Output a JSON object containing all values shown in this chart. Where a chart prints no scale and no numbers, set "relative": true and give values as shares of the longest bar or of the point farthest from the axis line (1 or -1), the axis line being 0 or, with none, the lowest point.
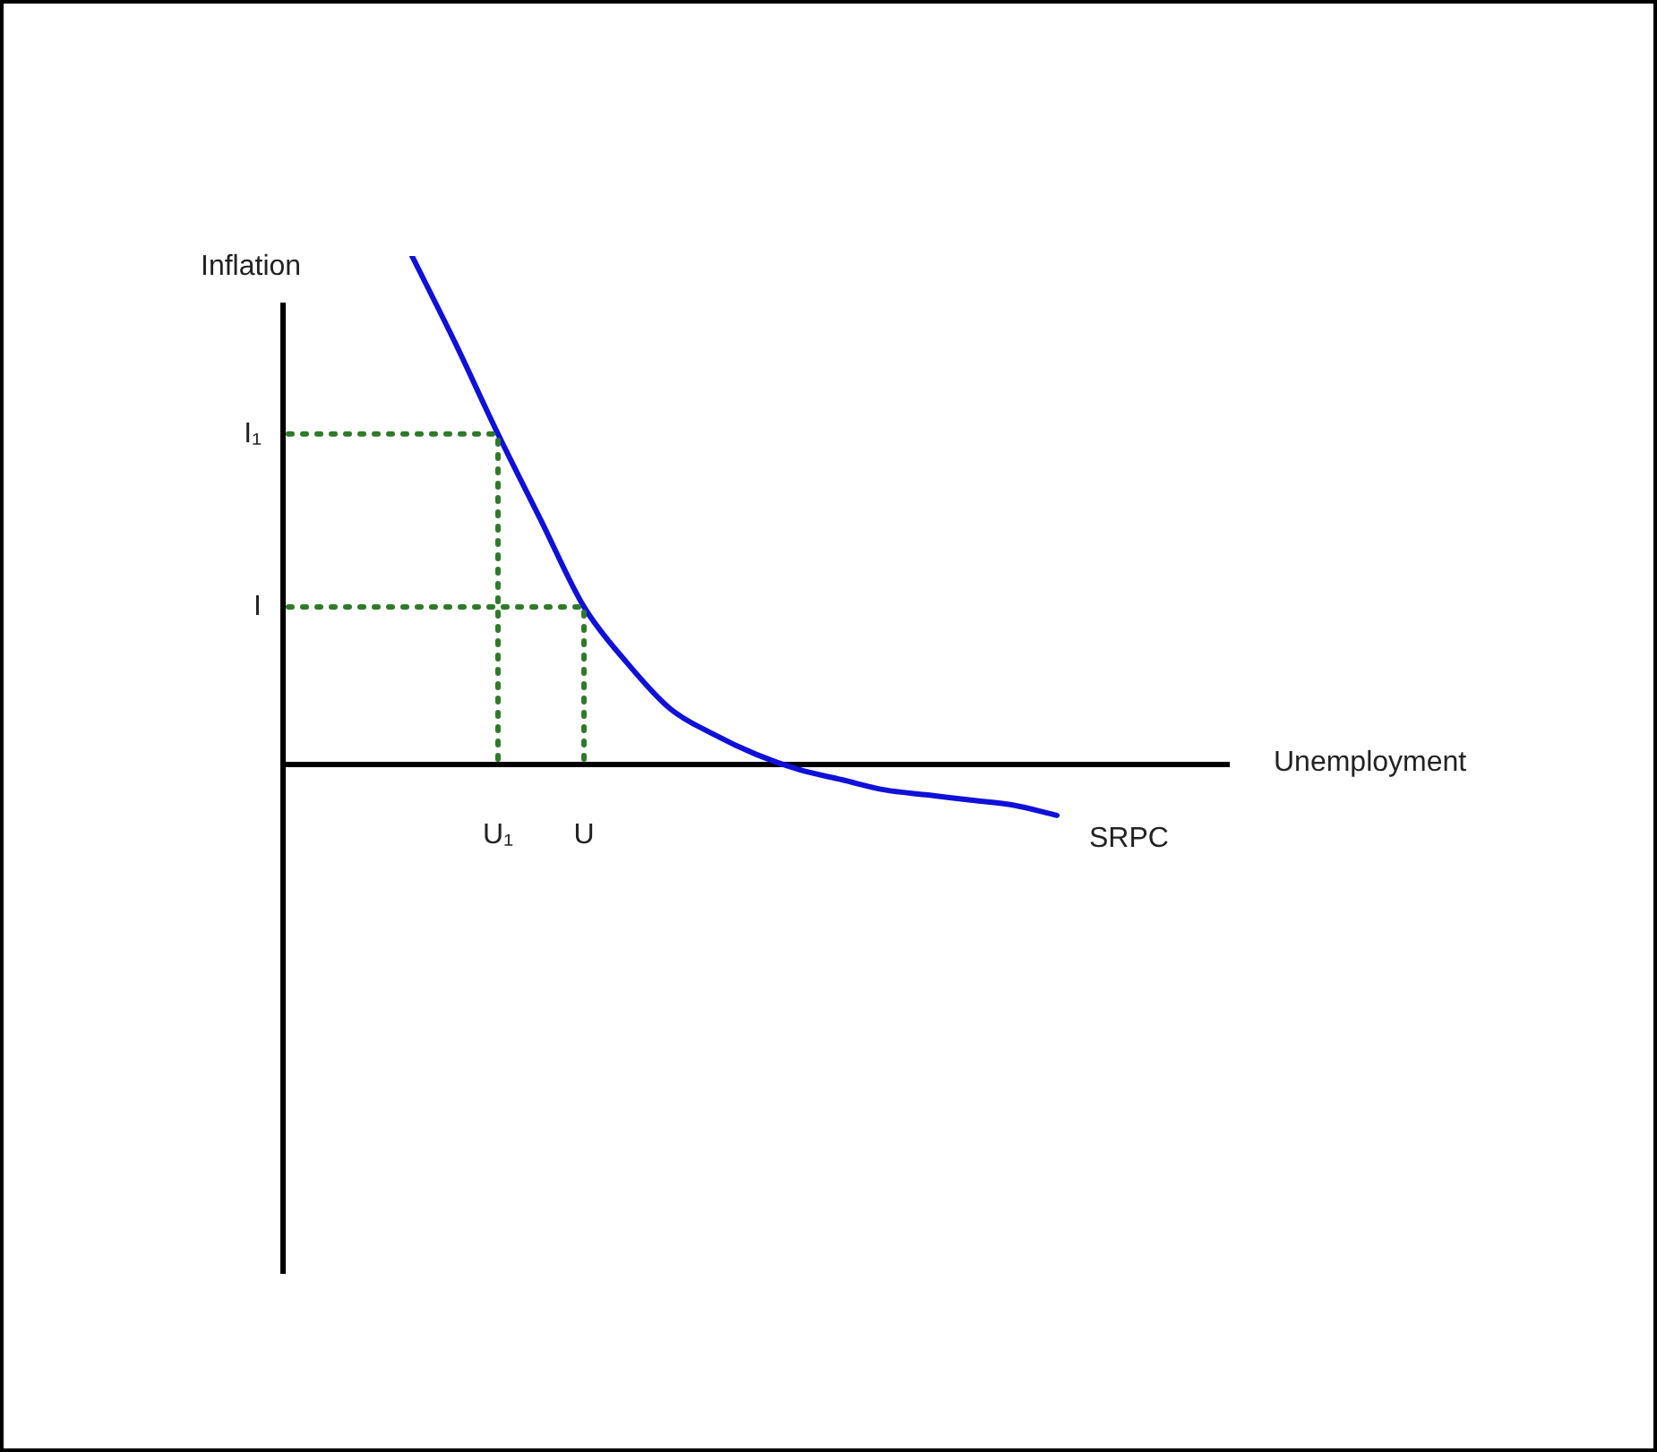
{
  "chart_data": {
    "type": "line",
    "relative": true,
    "xlabel": "Unemployment",
    "ylabel": "Inflation",
    "categories": [
      null,
      null,
      null,
      null,
      null,
      "U₁",
      null,
      "U",
      null,
      null,
      null,
      null,
      null,
      null,
      null,
      null,
      null,
      null,
      null,
      null,
      null,
      null,
      null
    ],
    "series": [
      {
        "name": "SRPC",
        "color": "#1010d8",
        "values": [
          null,
          null,
          null,
          1.0,
          0.83,
          0.65,
          0.48,
          0.31,
          0.2,
          0.11,
          0.06,
          0.02,
          -0.01,
          -0.03,
          -0.05,
          -0.06,
          -0.07,
          -0.08,
          -0.1,
          null,
          null,
          null,
          null
        ]
      }
    ],
    "ref_lines": [
      {
        "axis": "y",
        "value": 0.65,
        "label": "I₁",
        "color": "#2f7a2a",
        "line_style": "dotted"
      },
      {
        "axis": "y",
        "value": 0.31,
        "label": "I",
        "color": "#2f7a2a",
        "line_style": "dotted"
      },
      {
        "axis": "x",
        "value": "U₁",
        "color": "#2f7a2a",
        "line_style": "dotted"
      },
      {
        "axis": "x",
        "value": "U",
        "color": "#2f7a2a",
        "line_style": "dotted"
      }
    ],
    "grid": false,
    "legend": false,
    "marker": "none",
    "line_style": "solid"
  }
}
